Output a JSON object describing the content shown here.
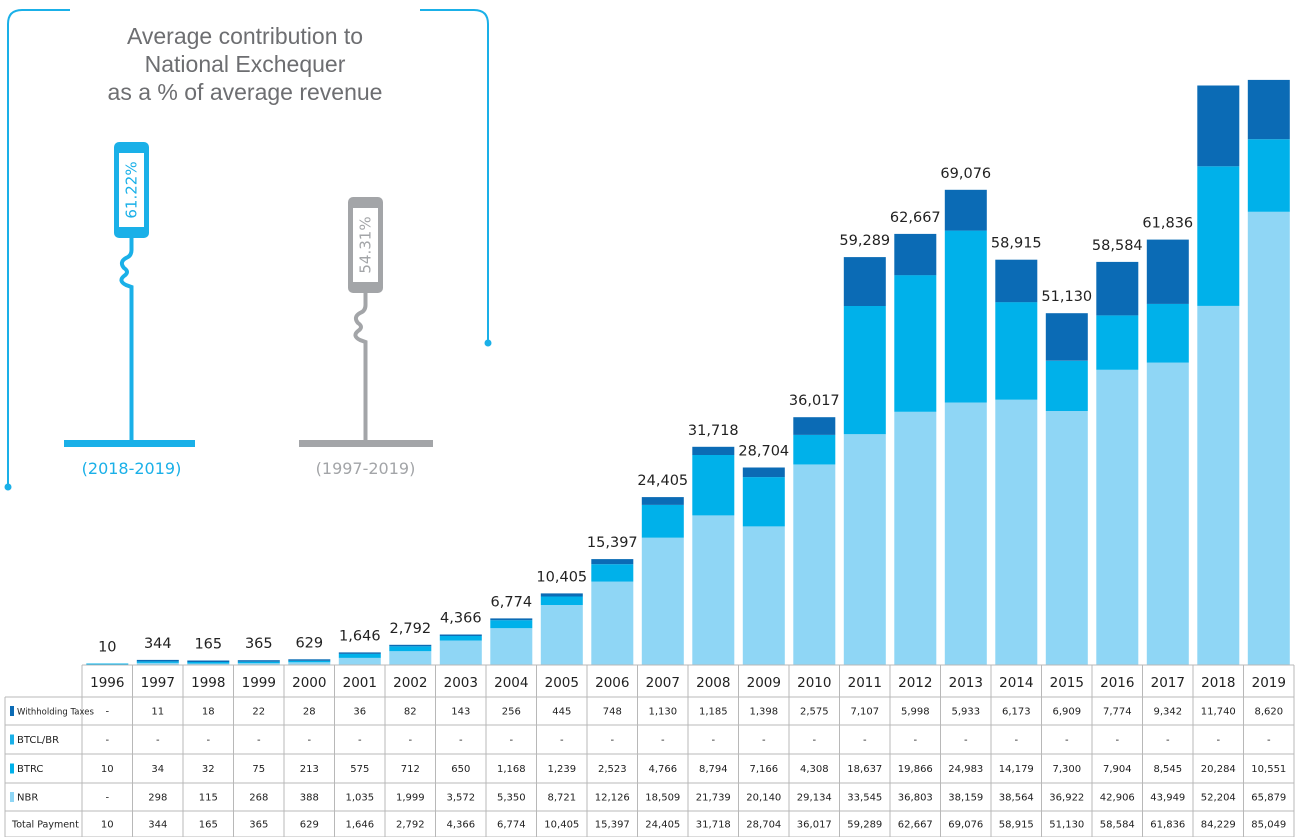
{
  "summary": {
    "title_lines": [
      "Average contribution to",
      "National Exchequer",
      "as a % of average revenue"
    ],
    "recent": {
      "pct": "61.22%",
      "period": "(2018-2019)",
      "color": "#1ab0e8"
    },
    "overall": {
      "pct": "54.31%",
      "period": "(1997-2019)",
      "color": "#a3a5a8"
    }
  },
  "chart_data": {
    "type": "bar",
    "stacked": true,
    "years": [
      "1996",
      "1997",
      "1998",
      "1999",
      "2000",
      "2001",
      "2002",
      "2003",
      "2004",
      "2005",
      "2006",
      "2007",
      "2008",
      "2009",
      "2010",
      "2011",
      "2012",
      "2013",
      "2014",
      "2015",
      "2016",
      "2017",
      "2018",
      "2019"
    ],
    "series": [
      {
        "name": "Withholding Taxes",
        "color": "#0b6bb5",
        "values": [
          0,
          11,
          18,
          22,
          28,
          36,
          82,
          143,
          256,
          445,
          748,
          1130,
          1185,
          1398,
          2575,
          7107,
          5998,
          5933,
          6173,
          6909,
          7774,
          9342,
          11740,
          8620
        ],
        "labels": [
          "-",
          "11",
          "18",
          "22",
          "28",
          "36",
          "82",
          "143",
          "256",
          "445",
          "748",
          "1,130",
          "1,185",
          "1,398",
          "2,575",
          "7,107",
          "5,998",
          "5,933",
          "6,173",
          "6,909",
          "7,774",
          "9,342",
          "11,740",
          "8,620"
        ]
      },
      {
        "name": "BTCL/BR",
        "color": "#1ab0e8",
        "values": [
          0,
          0,
          0,
          0,
          0,
          0,
          0,
          0,
          0,
          0,
          0,
          0,
          0,
          0,
          0,
          0,
          0,
          0,
          0,
          0,
          0,
          0,
          0,
          0
        ],
        "labels": [
          "-",
          "-",
          "-",
          "-",
          "-",
          "-",
          "-",
          "-",
          "-",
          "-",
          "-",
          "-",
          "-",
          "-",
          "-",
          "-",
          "-",
          "-",
          "-",
          "-",
          "-",
          "-",
          "-",
          "-"
        ]
      },
      {
        "name": "BTRC",
        "color": "#00b1ea",
        "values": [
          10,
          34,
          32,
          75,
          213,
          575,
          712,
          650,
          1168,
          1239,
          2523,
          4766,
          8794,
          7166,
          4308,
          18637,
          19866,
          24983,
          14179,
          7300,
          7904,
          8545,
          20284,
          10551
        ],
        "labels": [
          "10",
          "34",
          "32",
          "75",
          "213",
          "575",
          "712",
          "650",
          "1,168",
          "1,239",
          "2,523",
          "4,766",
          "8,794",
          "7,166",
          "4,308",
          "18,637",
          "19,866",
          "24,983",
          "14,179",
          "7,300",
          "7,904",
          "8,545",
          "20,284",
          "10,551"
        ]
      },
      {
        "name": "NBR",
        "color": "#8fd6f5",
        "values": [
          0,
          298,
          115,
          268,
          388,
          1035,
          1999,
          3572,
          5350,
          8721,
          12126,
          18509,
          21739,
          20140,
          29134,
          33545,
          36803,
          38159,
          38564,
          36922,
          42906,
          43949,
          52204,
          65879
        ],
        "labels": [
          "-",
          "298",
          "115",
          "268",
          "388",
          "1,035",
          "1,999",
          "3,572",
          "5,350",
          "8,721",
          "12,126",
          "18,509",
          "21,739",
          "20,140",
          "29,134",
          "33,545",
          "36,803",
          "38,159",
          "38,564",
          "36,922",
          "42,906",
          "43,949",
          "52,204",
          "65,879"
        ]
      }
    ],
    "totals_label": "Total Payment",
    "totals": [
      10,
      344,
      165,
      365,
      629,
      1646,
      2792,
      4366,
      6774,
      10405,
      15397,
      24405,
      31718,
      28704,
      36017,
      59289,
      62667,
      69076,
      58915,
      51130,
      58584,
      61836,
      84229,
      85049
    ],
    "totals_labels": [
      "10",
      "344",
      "165",
      "365",
      "629",
      "1,646",
      "2,792",
      "4,366",
      "6,774",
      "10,405",
      "15,397",
      "24,405",
      "31,718",
      "28,704",
      "36,017",
      "59,289",
      "62,667",
      "69,076",
      "58,915",
      "51,130",
      "58,584",
      "61,836",
      "84,229",
      "85,049"
    ],
    "bar_top_labels": [
      "10",
      "344",
      "165",
      "365",
      "629",
      "1,646",
      "2,792",
      "4,366",
      "6,774",
      "10,405",
      "15,397",
      "24,405",
      "31,718",
      "28,704",
      "36,017",
      "59,289",
      "62,667",
      "69,076",
      "58,915",
      "51,130",
      "58,584",
      "61,836",
      "",
      ""
    ]
  }
}
